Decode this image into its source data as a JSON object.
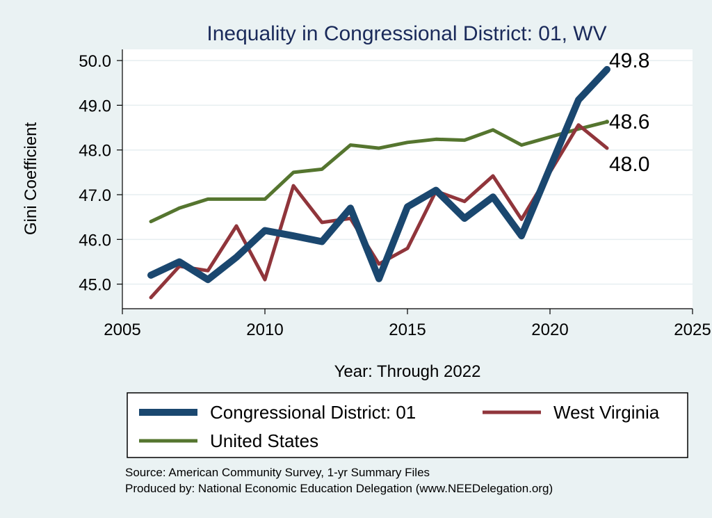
{
  "chart_data": {
    "type": "line",
    "title": "Inequality in Congressional District:  01, WV",
    "xlabel": "Year: Through 2022",
    "ylabel": "Gini Coefficient",
    "xlim": [
      2005,
      2025
    ],
    "ylim": [
      44.45,
      50.25
    ],
    "xticks": [
      "2005",
      "2010",
      "2015",
      "2020",
      "2025"
    ],
    "yticks": [
      "45.0",
      "46.0",
      "47.0",
      "48.0",
      "49.0",
      "50.0"
    ],
    "grid": true,
    "legend_position": "bottom",
    "series": [
      {
        "name": "Congressional District:  01",
        "color": "#1a476f",
        "x": [
          2006,
          2007,
          2008,
          2009,
          2010,
          2011,
          2012,
          2013,
          2014,
          2015,
          2016,
          2017,
          2018,
          2019,
          2021,
          2022
        ],
        "y": [
          45.2,
          45.5,
          45.1,
          45.6,
          46.2,
          46.08,
          45.95,
          46.7,
          45.12,
          46.73,
          47.1,
          46.47,
          46.95,
          46.08,
          49.12,
          49.8
        ]
      },
      {
        "name": "West Virginia",
        "color": "#90353b",
        "x": [
          2006,
          2007,
          2008,
          2009,
          2010,
          2011,
          2012,
          2013,
          2014,
          2015,
          2016,
          2017,
          2018,
          2019,
          2021,
          2022
        ],
        "y": [
          44.7,
          45.4,
          45.3,
          46.3,
          45.1,
          47.2,
          46.38,
          46.47,
          45.45,
          45.8,
          47.08,
          46.85,
          47.42,
          46.45,
          48.56,
          48.04
        ]
      },
      {
        "name": "United States",
        "color": "#55752f",
        "x": [
          2006,
          2007,
          2008,
          2009,
          2010,
          2011,
          2012,
          2013,
          2014,
          2015,
          2016,
          2017,
          2018,
          2019,
          2021,
          2022
        ],
        "y": [
          46.4,
          46.7,
          46.9,
          46.9,
          46.9,
          47.5,
          47.57,
          48.11,
          48.04,
          48.17,
          48.24,
          48.22,
          48.45,
          48.11,
          48.47,
          48.63
        ]
      }
    ],
    "end_labels": [
      {
        "text": "49.8",
        "series": 0
      },
      {
        "text": "48.6",
        "series": 2
      },
      {
        "text": "48.0",
        "series": 1
      }
    ],
    "legend": [
      {
        "label": "Congressional District:  01",
        "series": 0
      },
      {
        "label": "West Virginia",
        "series": 1
      },
      {
        "label": "United States",
        "series": 2
      }
    ]
  },
  "footer": {
    "source": "Source: American Community Survey, 1-yr Summary Files",
    "produced_by": "Produced by: National Economic Education Delegation (www.NEEDelegation.org)"
  }
}
